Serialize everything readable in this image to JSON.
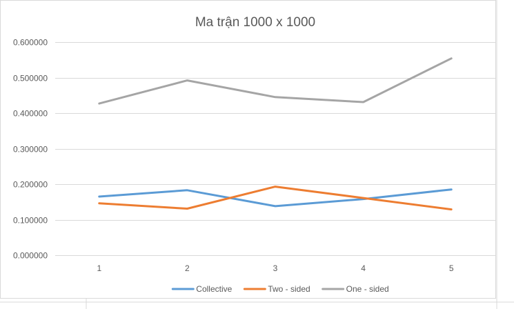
{
  "chart_data": {
    "type": "line",
    "title": "Ma trận 1000 x 1000",
    "xlabel": "",
    "ylabel": "",
    "categories": [
      "1",
      "2",
      "3",
      "4",
      "5"
    ],
    "ylim": [
      0,
      0.6
    ],
    "yticks": [
      0,
      0.1,
      0.2,
      0.3,
      0.4,
      0.5,
      0.6
    ],
    "ytick_labels": [
      "0.000000",
      "0.100000",
      "0.200000",
      "0.300000",
      "0.400000",
      "0.500000",
      "0.600000"
    ],
    "grid": true,
    "legend_position": "bottom",
    "series": [
      {
        "name": "Collective",
        "color": "#5b9bd5",
        "values": [
          0.165,
          0.183,
          0.138,
          0.158,
          0.185
        ]
      },
      {
        "name": "Two - sided",
        "color": "#ed7d31",
        "values": [
          0.146,
          0.131,
          0.193,
          0.161,
          0.129
        ]
      },
      {
        "name": "One - sided",
        "color": "#a5a5a5",
        "values": [
          0.427,
          0.492,
          0.445,
          0.431,
          0.554
        ]
      }
    ]
  }
}
